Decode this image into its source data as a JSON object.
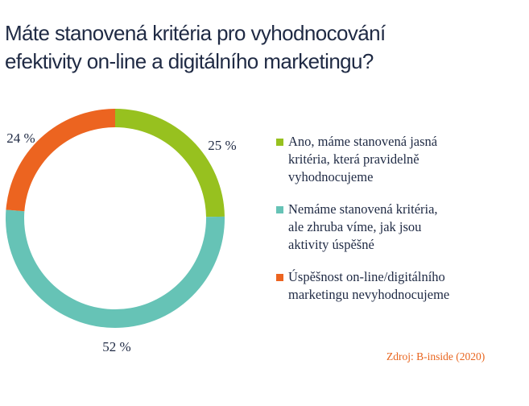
{
  "header": {
    "title_lines": [
      "Máte stanovená kritéria pro vyhodnocování",
      "efektivity on-line a digitálního marketingu?"
    ]
  },
  "chart_data": {
    "type": "pie",
    "variant": "donut",
    "slices": [
      {
        "label": "Ano, máme stanovená jasná kritéria, která pravidelně vyhodnocujeme",
        "value": 25,
        "display": "25 %",
        "color": "#97c11f"
      },
      {
        "label": "Nemáme stanovená kritéria, ale zhruba víme, jak jsou aktivity úspěšné",
        "value": 52,
        "display": "52 %",
        "color": "#66c3b6"
      },
      {
        "label": "Úspěšnost on-line/digitálního marketingu nevyhodnocujeme",
        "value": 24,
        "display": "24 %",
        "color": "#ec6420"
      }
    ],
    "legend": {
      "placement": "right",
      "items": [
        {
          "lines": [
            "Ano, máme stanovená jasná",
            "kritéria, která pravidelně",
            "vyhodnocujeme"
          ],
          "color": "#97c11f"
        },
        {
          "lines": [
            "Nemáme stanovená kritéria,",
            "ale zhruba víme, jak jsou",
            "aktivity úspěšné"
          ],
          "color": "#66c3b6"
        },
        {
          "lines": [
            "Úspěšnost on-line/digitálního",
            "marketingu nevyhodnocujeme"
          ],
          "color": "#ec6420"
        }
      ]
    }
  },
  "footer": {
    "source": "Zdroj: B-inside (2020)"
  }
}
